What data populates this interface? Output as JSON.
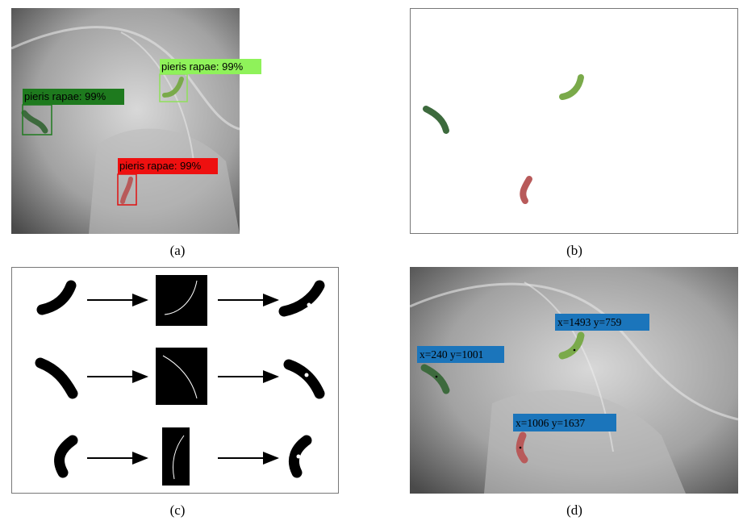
{
  "panels": [
    {
      "caption": "(a)",
      "detections": [
        {
          "label": "pieris rapae: 99%"
        },
        {
          "label": "pieris rapae: 99%"
        },
        {
          "label": "pieris rapae: 99%"
        }
      ]
    },
    {
      "caption": "(b)"
    },
    {
      "caption": "(c)"
    },
    {
      "caption": "(d)",
      "points": [
        {
          "label": "x=1493 y=759"
        },
        {
          "label": "x=240 y=1001"
        },
        {
          "label": "x=1006 y=1637"
        }
      ]
    }
  ]
}
